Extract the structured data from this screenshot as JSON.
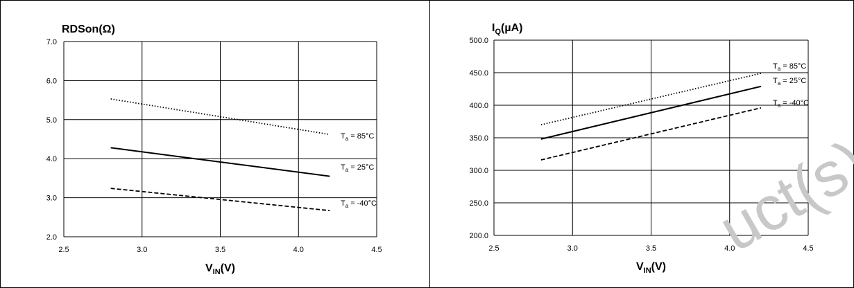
{
  "chart_data": [
    {
      "type": "line",
      "title": "RDSon(Ω)",
      "xlabel": "V",
      "xlabel_sub": "IN",
      "xlabel_suffix": "(V)",
      "xlim": [
        2.5,
        4.5
      ],
      "ylim": [
        2.0,
        7.0
      ],
      "xticks": [
        "2.5",
        "3.0",
        "3.5",
        "4.0",
        "4.5"
      ],
      "yticks": [
        "2.0",
        "3.0",
        "4.0",
        "5.0",
        "6.0",
        "7.0"
      ],
      "grid": true,
      "series": [
        {
          "name": "Ta = 85°C",
          "label_main": "T",
          "label_sub": "a",
          "label_rest": " = 85°C",
          "style": "dotted",
          "x": [
            2.8,
            4.2
          ],
          "y": [
            5.53,
            4.62
          ]
        },
        {
          "name": "Ta = 25°C",
          "label_main": "T",
          "label_sub": "a",
          "label_rest": " = 25°C",
          "style": "solid",
          "x": [
            2.8,
            4.2
          ],
          "y": [
            4.28,
            3.55
          ]
        },
        {
          "name": "Ta = -40°C",
          "label_main": "T",
          "label_sub": "a",
          "label_rest": " = -40°C",
          "style": "dashed",
          "x": [
            2.8,
            4.2
          ],
          "y": [
            3.24,
            2.67
          ]
        }
      ]
    },
    {
      "type": "line",
      "title_main": "I",
      "title_sub": "Q",
      "title_suffix": "(µA)",
      "xlabel": "V",
      "xlabel_sub": "IN",
      "xlabel_suffix": "(V)",
      "xlim": [
        2.5,
        4.5
      ],
      "ylim": [
        200.0,
        500.0
      ],
      "xticks": [
        "2.5",
        "3.0",
        "3.5",
        "4.0",
        "4.5"
      ],
      "yticks": [
        "200.0",
        "250.0",
        "300.0",
        "350.0",
        "400.0",
        "450.0",
        "500.0"
      ],
      "grid": true,
      "series": [
        {
          "name": "Ta = 85°C",
          "label_main": "T",
          "label_sub": "a",
          "label_rest": " = 85°C",
          "style": "dotted",
          "x": [
            2.8,
            4.2
          ],
          "y": [
            370,
            449
          ]
        },
        {
          "name": "Ta = 25°C",
          "label_main": "T",
          "label_sub": "a",
          "label_rest": " = 25°C",
          "style": "solid",
          "x": [
            2.8,
            4.2
          ],
          "y": [
            348,
            429
          ]
        },
        {
          "name": "Ta = -40°C",
          "label_main": "T",
          "label_sub": "a",
          "label_rest": " = -40°C",
          "style": "dashed",
          "x": [
            2.8,
            4.2
          ],
          "y": [
            316,
            396
          ]
        }
      ]
    }
  ],
  "watermark": "uct(s)"
}
